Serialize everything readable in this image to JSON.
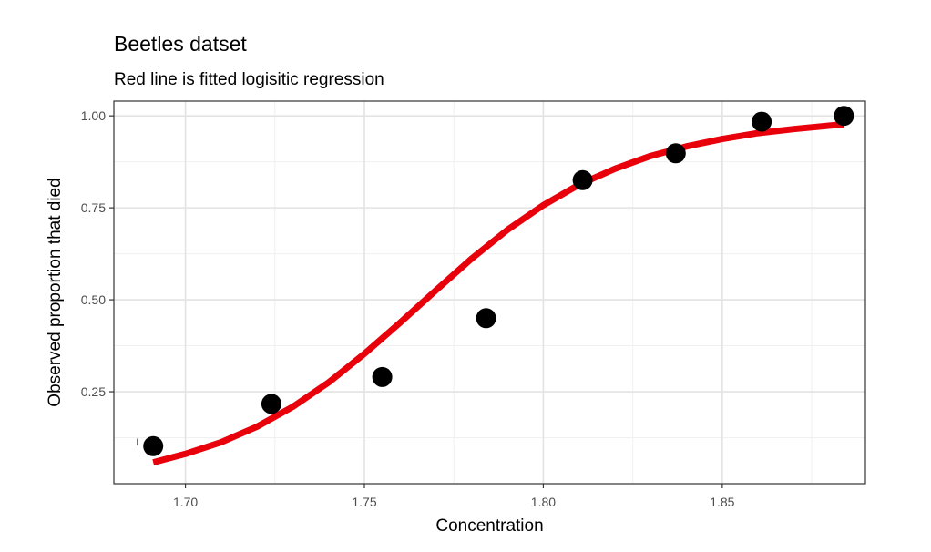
{
  "chart_data": {
    "type": "scatter",
    "title": "Beetles datset",
    "subtitle": "Red line is fitted logisitic regression",
    "xlabel": "Concentration",
    "ylabel": "Observed proportion that died",
    "xlim": [
      1.68,
      1.89
    ],
    "ylim": [
      0.0,
      1.04
    ],
    "x_ticks": [
      1.7,
      1.75,
      1.8,
      1.85
    ],
    "x_tick_labels": [
      "1.70",
      "1.75",
      "1.80",
      "1.85"
    ],
    "y_ticks": [
      0.25,
      0.5,
      0.75,
      1.0
    ],
    "y_tick_labels": [
      "0.25",
      "0.50",
      "0.75",
      "1.00"
    ],
    "grid": true,
    "series": [
      {
        "type": "scatter",
        "color": "#000000",
        "x": [
          1.691,
          1.724,
          1.755,
          1.784,
          1.811,
          1.837,
          1.861,
          1.884
        ],
        "y": [
          0.102,
          0.217,
          0.29,
          0.45,
          0.825,
          0.898,
          0.984,
          1.0
        ]
      },
      {
        "type": "line",
        "color": "#e8000b",
        "x": [
          1.691,
          1.7,
          1.71,
          1.72,
          1.73,
          1.74,
          1.75,
          1.76,
          1.77,
          1.78,
          1.79,
          1.8,
          1.81,
          1.82,
          1.83,
          1.84,
          1.85,
          1.86,
          1.87,
          1.884
        ],
        "y": [
          0.058,
          0.081,
          0.113,
          0.155,
          0.209,
          0.275,
          0.353,
          0.438,
          0.526,
          0.612,
          0.69,
          0.757,
          0.813,
          0.856,
          0.891,
          0.917,
          0.937,
          0.953,
          0.964,
          0.977
        ]
      }
    ],
    "annotations": [
      {
        "text": "I",
        "x": 1.6865,
        "y": 0.105
      }
    ]
  }
}
